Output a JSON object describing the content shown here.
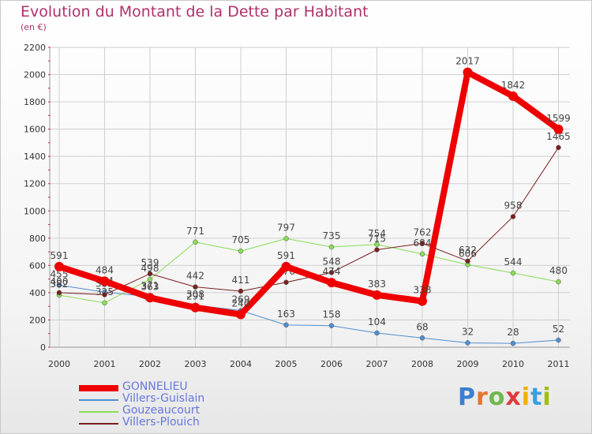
{
  "title": "Evolution du Montant de la Dette par Habitant",
  "subtitle": "(en €)",
  "logo": {
    "text": "Proxiti",
    "letters": [
      "P",
      "r",
      "o",
      "x",
      "i",
      "t",
      "i"
    ],
    "colors": [
      "#3a7fd0",
      "#e8742c",
      "#6fb84a",
      "#e23a3a",
      "#f0b000",
      "#3aa0e0",
      "#a0c000"
    ]
  },
  "chart_data": {
    "type": "line",
    "title": "Evolution du Montant de la Dette par Habitant",
    "subtitle": "(en €)",
    "xlabel": "",
    "ylabel": "",
    "x": [
      "2000",
      "2001",
      "2002",
      "2003",
      "2004",
      "2005",
      "2006",
      "2007",
      "2008",
      "2009",
      "2010",
      "2011"
    ],
    "ylim": [
      0,
      2200
    ],
    "yticks": [
      0,
      200,
      400,
      600,
      800,
      1000,
      1200,
      1400,
      1600,
      1800,
      2000,
      2200
    ],
    "grid": true,
    "legend_position": "bottom-left",
    "series": [
      {
        "name": "GONNELIEU",
        "color": "#ee0000",
        "line_width": 8,
        "values": [
          591,
          484,
          363,
          291,
          240,
          591,
          474,
          383,
          338,
          2017,
          1842,
          1599
        ],
        "labels": [
          "591",
          "484",
          "363",
          "291",
          "240",
          "591",
          "474",
          "383",
          "338",
          "2017",
          "1842",
          "1599"
        ]
      },
      {
        "name": "Villers-Guislain",
        "color": "#4f8fd0",
        "line_width": 1,
        "values": [
          455,
          404,
          371,
          308,
          269,
          163,
          158,
          104,
          68,
          32,
          28,
          52
        ],
        "labels": [
          "455",
          "404",
          "371",
          "308",
          "269",
          "163",
          "158",
          "104",
          "68",
          "32",
          "28",
          "52"
        ]
      },
      {
        "name": "Gouzeaucourt",
        "color": "#88dd55",
        "line_width": 1,
        "values": [
          382,
          325,
          498,
          771,
          705,
          797,
          735,
          754,
          684,
          606,
          544,
          480
        ],
        "labels": [
          "382",
          "325",
          "498",
          "771",
          "705",
          "797",
          "735",
          "754",
          "684",
          "606",
          "544",
          "480"
        ]
      },
      {
        "name": "Villers-Plouich",
        "color": "#7a2020",
        "line_width": 1,
        "values": [
          400,
          385,
          539,
          442,
          411,
          476,
          548,
          715,
          762,
          632,
          958,
          1465
        ],
        "labels": [
          "400",
          "385",
          "539",
          "442",
          "411",
          "476",
          "548",
          "715",
          "762",
          "632",
          "958",
          "1465"
        ]
      }
    ]
  }
}
